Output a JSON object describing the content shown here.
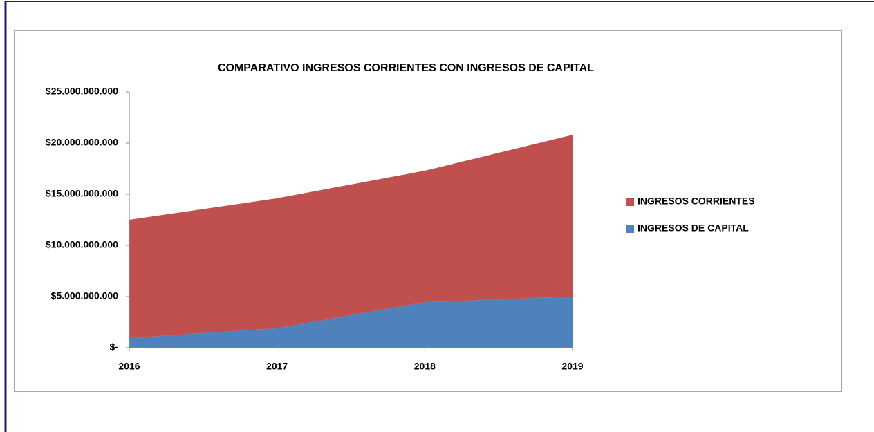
{
  "chart_data": {
    "type": "stacked_area",
    "title": "COMPARATIVO INGRESOS CORRIENTES CON INGRESOS DE CAPITAL",
    "categories": [
      "2016",
      "2017",
      "2018",
      "2019"
    ],
    "series": [
      {
        "name": "INGRESOS CORRIENTES",
        "color": "#c0504d",
        "values": [
          11550000000,
          12700000000,
          12850000000,
          15800000000
        ]
      },
      {
        "name": "INGRESOS DE CAPITAL",
        "color": "#4f81bd",
        "values": [
          950000000,
          1900000000,
          4450000000,
          5000000000
        ]
      }
    ],
    "ylim": [
      0,
      25000000000
    ],
    "yticks": [
      {
        "value": 0,
        "label": "$-"
      },
      {
        "value": 5000000000,
        "label": "$5.000.000.000"
      },
      {
        "value": 10000000000,
        "label": "$10.000.000.000"
      },
      {
        "value": 15000000000,
        "label": "$15.000.000.000"
      },
      {
        "value": 20000000000,
        "label": "$20.000.000.000"
      },
      {
        "value": 25000000000,
        "label": "$25.000.000.000"
      }
    ],
    "grid": false,
    "legend": "right"
  }
}
